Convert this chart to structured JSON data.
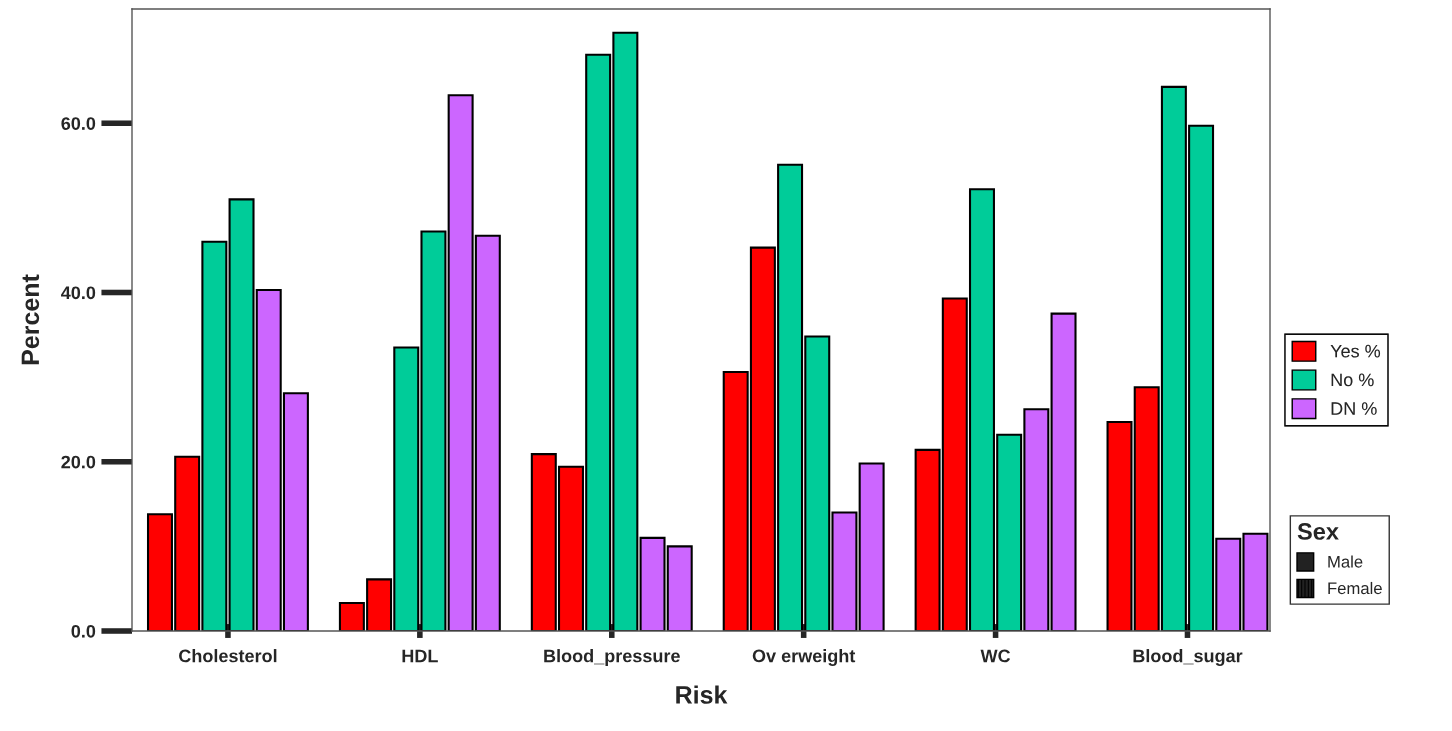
{
  "chart_data": {
    "type": "bar",
    "xlabel": "Risk",
    "ylabel": "Percent",
    "categories": [
      "Cholesterol",
      "HDL",
      "Blood_pressure",
      "Ov erweight",
      "WC",
      "Blood_sugar"
    ],
    "series": [
      {
        "name": "Yes %",
        "color": "#ff0000",
        "values": [
          13.8,
          3.3,
          20.9,
          30.6,
          21.4,
          24.7
        ]
      },
      {
        "color": "#ff0000",
        "values": [
          20.6,
          6.1,
          19.4,
          45.3,
          39.3,
          28.8
        ]
      },
      {
        "name": "No %",
        "color": "#00cc99",
        "values": [
          46.0,
          33.5,
          68.1,
          55.1,
          52.2,
          64.3
        ]
      },
      {
        "color": "#00cc99",
        "values": [
          51.0,
          47.2,
          70.7,
          34.8,
          23.2,
          59.7
        ]
      },
      {
        "name": "DN %",
        "color": "#cc66ff",
        "values": [
          40.3,
          63.3,
          11.0,
          14.0,
          26.2,
          10.9
        ]
      },
      {
        "color": "#cc66ff",
        "values": [
          28.1,
          46.7,
          10.0,
          19.8,
          37.5,
          11.5
        ]
      }
    ],
    "annotations": [
      "Male",
      "Female"
    ],
    "legend_title": "Sex",
    "legend": "right",
    "ylim": [
      0,
      73.5
    ],
    "yticks": [
      {
        "value": 0,
        "label": "0.0"
      },
      {
        "value": 20,
        "label": "20.0"
      },
      {
        "value": 40,
        "label": "40.0"
      },
      {
        "value": 60,
        "label": "60.0"
      }
    ],
    "grid": false
  }
}
